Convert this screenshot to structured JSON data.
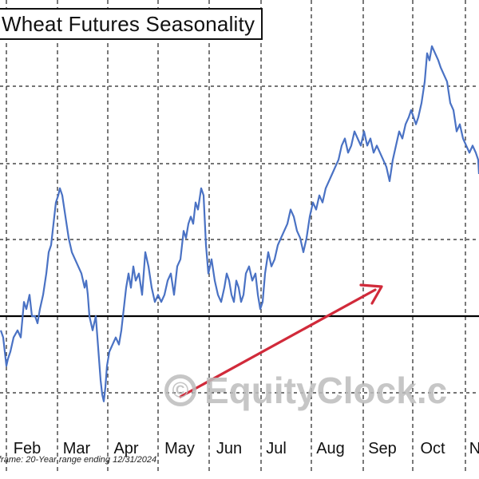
{
  "chart_data": {
    "type": "line",
    "title": "Wheat Futures Seasonality",
    "xlabel": "",
    "ylabel": "",
    "months": [
      "Feb",
      "Mar",
      "Apr",
      "May",
      "Jun",
      "Jul",
      "Aug",
      "Sep",
      "Oct",
      "N"
    ],
    "grid": true,
    "legend": "none",
    "baseline_value": 0,
    "annotation": "upward arrow from May to Sep",
    "series": [
      {
        "color": "#4a72c4",
        "points": [
          [
            1,
            -2
          ],
          [
            4,
            -3
          ],
          [
            8,
            -7
          ],
          [
            10,
            -6
          ],
          [
            13,
            -5
          ],
          [
            17,
            -3
          ],
          [
            22,
            -2
          ],
          [
            26,
            -3
          ],
          [
            30,
            2
          ],
          [
            33,
            1
          ],
          [
            37,
            3
          ],
          [
            40,
            0
          ],
          [
            44,
            0
          ],
          [
            47,
            -1
          ],
          [
            50,
            1
          ],
          [
            54,
            3
          ],
          [
            58,
            6
          ],
          [
            61,
            9
          ],
          [
            64,
            10
          ],
          [
            66,
            12
          ],
          [
            68,
            14
          ],
          [
            70,
            16
          ],
          [
            73,
            17
          ],
          [
            75,
            18
          ],
          [
            78,
            17
          ],
          [
            82,
            14
          ],
          [
            86,
            11
          ],
          [
            90,
            9
          ],
          [
            94,
            8
          ],
          [
            98,
            7
          ],
          [
            102,
            6
          ],
          [
            106,
            4
          ],
          [
            108,
            5
          ],
          [
            110,
            3
          ],
          [
            112,
            0
          ],
          [
            114,
            -1
          ],
          [
            116,
            -2
          ],
          [
            118,
            -1
          ],
          [
            120,
            0
          ],
          [
            122,
            -3
          ],
          [
            124,
            -6
          ],
          [
            126,
            -9
          ],
          [
            128,
            -11
          ],
          [
            130,
            -12
          ],
          [
            132,
            -10
          ],
          [
            134,
            -7
          ],
          [
            137,
            -5
          ],
          [
            141,
            -4
          ],
          [
            145,
            -3
          ],
          [
            149,
            -4
          ],
          [
            152,
            -2
          ],
          [
            155,
            1
          ],
          [
            158,
            4
          ],
          [
            161,
            6
          ],
          [
            164,
            4
          ],
          [
            167,
            7
          ],
          [
            170,
            5
          ],
          [
            174,
            6
          ],
          [
            178,
            3
          ],
          [
            182,
            9
          ],
          [
            186,
            7
          ],
          [
            190,
            4
          ],
          [
            194,
            2
          ],
          [
            198,
            3
          ],
          [
            202,
            2
          ],
          [
            206,
            3
          ],
          [
            210,
            5
          ],
          [
            214,
            6
          ],
          [
            218,
            3
          ],
          [
            222,
            7
          ],
          [
            226,
            8
          ],
          [
            230,
            12
          ],
          [
            233,
            11
          ],
          [
            236,
            13
          ],
          [
            239,
            14
          ],
          [
            242,
            13
          ],
          [
            245,
            16
          ],
          [
            248,
            15
          ],
          [
            252,
            18
          ],
          [
            255,
            17
          ],
          [
            258,
            10
          ],
          [
            261,
            6
          ],
          [
            265,
            8
          ],
          [
            269,
            5
          ],
          [
            273,
            3
          ],
          [
            277,
            2
          ],
          [
            281,
            4
          ],
          [
            284,
            6
          ],
          [
            287,
            5
          ],
          [
            290,
            3
          ],
          [
            293,
            2
          ],
          [
            296,
            5
          ],
          [
            299,
            4
          ],
          [
            302,
            2
          ],
          [
            305,
            3
          ],
          [
            308,
            6
          ],
          [
            312,
            7
          ],
          [
            316,
            5
          ],
          [
            320,
            6
          ],
          [
            323,
            3
          ],
          [
            326,
            1
          ],
          [
            329,
            2
          ],
          [
            332,
            6
          ],
          [
            336,
            9
          ],
          [
            340,
            7
          ],
          [
            344,
            8
          ],
          [
            348,
            10
          ],
          [
            352,
            11
          ],
          [
            356,
            12
          ],
          [
            360,
            13
          ],
          [
            364,
            15
          ],
          [
            368,
            14
          ],
          [
            372,
            12
          ],
          [
            376,
            11
          ],
          [
            380,
            9
          ],
          [
            384,
            11
          ],
          [
            388,
            14
          ],
          [
            392,
            16
          ],
          [
            396,
            15
          ],
          [
            400,
            17
          ],
          [
            404,
            16
          ],
          [
            408,
            18
          ],
          [
            412,
            19
          ],
          [
            416,
            20
          ],
          [
            420,
            21
          ],
          [
            424,
            22
          ],
          [
            428,
            24
          ],
          [
            432,
            25
          ],
          [
            436,
            23
          ],
          [
            440,
            24
          ],
          [
            444,
            26
          ],
          [
            448,
            25
          ],
          [
            452,
            24
          ],
          [
            456,
            26
          ],
          [
            460,
            24
          ],
          [
            464,
            25
          ],
          [
            468,
            23
          ],
          [
            472,
            24
          ],
          [
            476,
            23
          ],
          [
            480,
            22
          ],
          [
            484,
            21
          ],
          [
            488,
            19
          ],
          [
            492,
            22
          ],
          [
            496,
            24
          ],
          [
            500,
            26
          ],
          [
            504,
            25
          ],
          [
            508,
            27
          ],
          [
            512,
            28
          ],
          [
            515,
            29
          ],
          [
            518,
            28
          ],
          [
            521,
            27
          ],
          [
            524,
            28
          ],
          [
            528,
            30
          ],
          [
            532,
            33
          ],
          [
            535,
            37
          ],
          [
            538,
            36
          ],
          [
            541,
            38
          ],
          [
            545,
            37
          ],
          [
            549,
            36
          ],
          [
            552,
            35
          ],
          [
            556,
            34
          ],
          [
            560,
            33
          ],
          [
            564,
            30
          ],
          [
            568,
            29
          ],
          [
            572,
            26
          ],
          [
            576,
            27
          ],
          [
            580,
            25
          ],
          [
            584,
            24
          ],
          [
            588,
            23
          ],
          [
            592,
            24
          ],
          [
            596,
            23
          ],
          [
            599,
            22
          ],
          [
            600,
            20
          ]
        ]
      }
    ]
  },
  "footnote": "frame: 20-Year range ending 12/31/2024",
  "watermark": "EquityClock.c",
  "watermark_symbol": "©",
  "colors": {
    "line": "#4a72c4",
    "arrow": "#d12a3a",
    "baseline": "#000000",
    "grid": "#222222",
    "watermark": "#bdbdbd"
  }
}
